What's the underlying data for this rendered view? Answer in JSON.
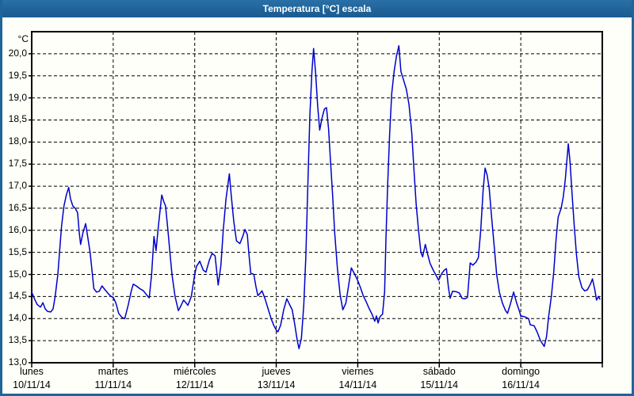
{
  "window": {
    "title": "Temperatura [°C] escala"
  },
  "colors": {
    "frame": "#20659a",
    "titlebar": "#1f6399",
    "title_text": "#ffffff",
    "background": "#fdfff8",
    "plot_border": "#000000",
    "grid": "#000000",
    "line": "#0000cd",
    "text": "#000000"
  },
  "chart_data": {
    "type": "line",
    "title": "Temperatura [°C] escala",
    "ylabel": "°C",
    "ylim": [
      13.0,
      20.5
    ],
    "grid": "dashed",
    "legend": "none",
    "hours_span": 168,
    "y_ticks": [
      {
        "v": 20.0,
        "label": "20,0"
      },
      {
        "v": 19.5,
        "label": "19,5"
      },
      {
        "v": 19.0,
        "label": "19,0"
      },
      {
        "v": 18.5,
        "label": "18,5"
      },
      {
        "v": 18.0,
        "label": "18,0"
      },
      {
        "v": 17.5,
        "label": "17,5"
      },
      {
        "v": 17.0,
        "label": "17,0"
      },
      {
        "v": 16.5,
        "label": "16,5"
      },
      {
        "v": 16.0,
        "label": "16,0"
      },
      {
        "v": 15.5,
        "label": "15,5"
      },
      {
        "v": 15.0,
        "label": "15,0"
      },
      {
        "v": 14.5,
        "label": "14,5"
      },
      {
        "v": 14.0,
        "label": "14,0"
      },
      {
        "v": 13.5,
        "label": "13,5"
      },
      {
        "v": 13.0,
        "label": "13,0"
      }
    ],
    "days": [
      {
        "name": "lunes",
        "date": "10/11/14"
      },
      {
        "name": "martes",
        "date": "11/11/14"
      },
      {
        "name": "miércoles",
        "date": "12/11/14"
      },
      {
        "name": "jueves",
        "date": "13/11/14"
      },
      {
        "name": "viernes",
        "date": "14/11/14"
      },
      {
        "name": "sábado",
        "date": "15/11/14"
      },
      {
        "name": "domingo",
        "date": "16/11/14"
      }
    ],
    "series": [
      {
        "name": "Temperatura",
        "points": [
          [
            0,
            14.6
          ],
          [
            0.8,
            14.45
          ],
          [
            1.6,
            14.32
          ],
          [
            2.6,
            14.26
          ],
          [
            3.3,
            14.36
          ],
          [
            4.0,
            14.22
          ],
          [
            4.7,
            14.16
          ],
          [
            5.6,
            14.15
          ],
          [
            6.3,
            14.22
          ],
          [
            6.9,
            14.5
          ],
          [
            7.7,
            15.0
          ],
          [
            8.2,
            15.5
          ],
          [
            8.8,
            16.1
          ],
          [
            9.5,
            16.55
          ],
          [
            10.2,
            16.8
          ],
          [
            10.9,
            16.97
          ],
          [
            11.4,
            16.72
          ],
          [
            12.1,
            16.55
          ],
          [
            12.8,
            16.5
          ],
          [
            13.5,
            16.4
          ],
          [
            14.0,
            15.95
          ],
          [
            14.4,
            15.68
          ],
          [
            15.1,
            15.95
          ],
          [
            15.9,
            16.15
          ],
          [
            16.5,
            15.85
          ],
          [
            17.2,
            15.5
          ],
          [
            17.8,
            15.05
          ],
          [
            18.3,
            14.68
          ],
          [
            19.1,
            14.6
          ],
          [
            19.9,
            14.62
          ],
          [
            20.7,
            14.74
          ],
          [
            21.6,
            14.65
          ],
          [
            22.6,
            14.56
          ],
          [
            23.4,
            14.5
          ],
          [
            24,
            14.48
          ],
          [
            24.8,
            14.35
          ],
          [
            25.6,
            14.12
          ],
          [
            26.5,
            14.03
          ],
          [
            27.4,
            14.0
          ],
          [
            28.4,
            14.3
          ],
          [
            29.3,
            14.62
          ],
          [
            29.9,
            14.78
          ],
          [
            30.8,
            14.74
          ],
          [
            31.8,
            14.68
          ],
          [
            32.9,
            14.63
          ],
          [
            33.9,
            14.53
          ],
          [
            34.6,
            14.47
          ],
          [
            35.3,
            15.0
          ],
          [
            36.0,
            15.86
          ],
          [
            36.6,
            15.54
          ],
          [
            37.3,
            16.1
          ],
          [
            38.3,
            16.8
          ],
          [
            38.9,
            16.65
          ],
          [
            39.4,
            16.55
          ],
          [
            40.1,
            16.0
          ],
          [
            40.7,
            15.5
          ],
          [
            41.3,
            15.0
          ],
          [
            42.2,
            14.5
          ],
          [
            43.2,
            14.18
          ],
          [
            44.0,
            14.3
          ],
          [
            44.7,
            14.42
          ],
          [
            45.5,
            14.35
          ],
          [
            46.0,
            14.3
          ],
          [
            47.0,
            14.5
          ],
          [
            48,
            15.0
          ],
          [
            48.5,
            15.18
          ],
          [
            49.5,
            15.3
          ],
          [
            50.5,
            15.1
          ],
          [
            51.3,
            15.05
          ],
          [
            52.3,
            15.32
          ],
          [
            53.1,
            15.48
          ],
          [
            54.0,
            15.42
          ],
          [
            54.9,
            14.76
          ],
          [
            55.7,
            15.2
          ],
          [
            56.4,
            16.0
          ],
          [
            57.2,
            16.7
          ],
          [
            58.2,
            17.28
          ],
          [
            58.8,
            16.75
          ],
          [
            59.5,
            16.2
          ],
          [
            60.3,
            15.76
          ],
          [
            61.3,
            15.7
          ],
          [
            62.1,
            15.85
          ],
          [
            62.8,
            16.02
          ],
          [
            63.5,
            15.9
          ],
          [
            63.9,
            15.5
          ],
          [
            64.5,
            15.03
          ],
          [
            65.4,
            15.0
          ],
          [
            66.0,
            14.73
          ],
          [
            66.6,
            14.52
          ],
          [
            67.2,
            14.57
          ],
          [
            67.8,
            14.63
          ],
          [
            68.7,
            14.45
          ],
          [
            69.6,
            14.22
          ],
          [
            70.5,
            14.0
          ],
          [
            71.3,
            13.84
          ],
          [
            72,
            13.74
          ],
          [
            72.5,
            13.7
          ],
          [
            73.3,
            13.85
          ],
          [
            74.2,
            14.2
          ],
          [
            75.1,
            14.45
          ],
          [
            75.9,
            14.32
          ],
          [
            76.7,
            14.2
          ],
          [
            77.5,
            13.85
          ],
          [
            78.2,
            13.5
          ],
          [
            78.7,
            13.32
          ],
          [
            79.4,
            13.55
          ],
          [
            80.1,
            14.3
          ],
          [
            80.7,
            15.4
          ],
          [
            81.3,
            17.0
          ],
          [
            81.9,
            18.6
          ],
          [
            82.5,
            19.6
          ],
          [
            83.0,
            20.12
          ],
          [
            83.6,
            19.55
          ],
          [
            84.2,
            18.8
          ],
          [
            84.8,
            18.27
          ],
          [
            85.5,
            18.55
          ],
          [
            86.2,
            18.75
          ],
          [
            86.8,
            18.78
          ],
          [
            87.4,
            18.3
          ],
          [
            88.0,
            17.55
          ],
          [
            88.6,
            16.8
          ],
          [
            89.2,
            15.95
          ],
          [
            90.0,
            15.15
          ],
          [
            90.8,
            14.55
          ],
          [
            91.6,
            14.2
          ],
          [
            92.5,
            14.35
          ],
          [
            93.3,
            14.75
          ],
          [
            94.1,
            15.15
          ],
          [
            95.0,
            15.02
          ],
          [
            96,
            14.86
          ],
          [
            96.8,
            14.7
          ],
          [
            97.6,
            14.52
          ],
          [
            98.5,
            14.38
          ],
          [
            99.4,
            14.22
          ],
          [
            100.2,
            14.1
          ],
          [
            101.0,
            13.94
          ],
          [
            101.5,
            14.06
          ],
          [
            102.0,
            13.9
          ],
          [
            102.6,
            14.05
          ],
          [
            103.3,
            14.1
          ],
          [
            103.9,
            14.6
          ],
          [
            104.3,
            15.8
          ],
          [
            104.8,
            17.0
          ],
          [
            105.4,
            18.2
          ],
          [
            106.0,
            19.1
          ],
          [
            106.7,
            19.6
          ],
          [
            107.4,
            19.95
          ],
          [
            108.1,
            20.18
          ],
          [
            108.7,
            19.6
          ],
          [
            109.5,
            19.4
          ],
          [
            110.3,
            19.2
          ],
          [
            111.1,
            18.85
          ],
          [
            111.9,
            18.2
          ],
          [
            112.6,
            17.3
          ],
          [
            113.2,
            16.6
          ],
          [
            113.9,
            16.0
          ],
          [
            114.6,
            15.5
          ],
          [
            115.1,
            15.4
          ],
          [
            115.9,
            15.68
          ],
          [
            116.6,
            15.45
          ],
          [
            117.3,
            15.25
          ],
          [
            118.2,
            15.1
          ],
          [
            119.0,
            14.99
          ],
          [
            119.8,
            14.87
          ],
          [
            120,
            14.9
          ],
          [
            120.7,
            15.02
          ],
          [
            121.5,
            15.1
          ],
          [
            122.1,
            15.13
          ],
          [
            122.7,
            14.7
          ],
          [
            123.2,
            14.46
          ],
          [
            123.9,
            14.62
          ],
          [
            125.0,
            14.61
          ],
          [
            125.9,
            14.58
          ],
          [
            126.7,
            14.46
          ],
          [
            127.6,
            14.45
          ],
          [
            128.3,
            14.48
          ],
          [
            129.1,
            15.26
          ],
          [
            129.9,
            15.21
          ],
          [
            130.8,
            15.28
          ],
          [
            131.5,
            15.38
          ],
          [
            132.2,
            16.0
          ],
          [
            132.9,
            16.9
          ],
          [
            133.5,
            17.41
          ],
          [
            134.1,
            17.25
          ],
          [
            134.7,
            16.95
          ],
          [
            135.4,
            16.3
          ],
          [
            136.1,
            15.7
          ],
          [
            136.9,
            15.0
          ],
          [
            137.7,
            14.6
          ],
          [
            138.6,
            14.35
          ],
          [
            139.5,
            14.18
          ],
          [
            140.1,
            14.12
          ],
          [
            141.0,
            14.35
          ],
          [
            141.9,
            14.6
          ],
          [
            142.8,
            14.35
          ],
          [
            143.6,
            14.17
          ],
          [
            144,
            14.06
          ],
          [
            145.2,
            14.04
          ],
          [
            146.3,
            14.0
          ],
          [
            146.8,
            13.86
          ],
          [
            147.9,
            13.84
          ],
          [
            148.8,
            13.7
          ],
          [
            149.8,
            13.5
          ],
          [
            150.9,
            13.37
          ],
          [
            151.6,
            13.6
          ],
          [
            152.2,
            14.05
          ],
          [
            153.0,
            14.5
          ],
          [
            153.7,
            15.05
          ],
          [
            154.4,
            15.8
          ],
          [
            155.0,
            16.3
          ],
          [
            155.9,
            16.5
          ],
          [
            156.5,
            16.75
          ],
          [
            157.1,
            17.15
          ],
          [
            157.6,
            17.6
          ],
          [
            158.0,
            17.96
          ],
          [
            158.5,
            17.55
          ],
          [
            159.0,
            16.95
          ],
          [
            159.7,
            16.15
          ],
          [
            160.4,
            15.45
          ],
          [
            161.1,
            14.95
          ],
          [
            162.0,
            14.7
          ],
          [
            162.8,
            14.63
          ],
          [
            163.6,
            14.65
          ],
          [
            164.5,
            14.78
          ],
          [
            165.1,
            14.9
          ],
          [
            165.8,
            14.65
          ],
          [
            166.3,
            14.42
          ],
          [
            166.9,
            14.5
          ],
          [
            167.3,
            14.44
          ]
        ]
      }
    ]
  }
}
